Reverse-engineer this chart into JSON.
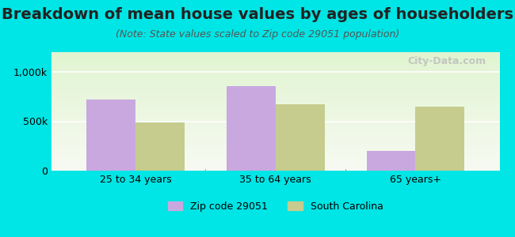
{
  "title": "Breakdown of mean house values by ages of householders",
  "subtitle": "(Note: State values scaled to Zip code 29051 population)",
  "categories": [
    "25 to 34 years",
    "35 to 64 years",
    "65 years+"
  ],
  "zip_values": [
    720000,
    860000,
    200000
  ],
  "state_values": [
    490000,
    670000,
    650000
  ],
  "ylim": [
    0,
    1200000
  ],
  "yticks": [
    0,
    500000,
    1000000
  ],
  "ytick_labels": [
    "0",
    "500k",
    "1,000k"
  ],
  "zip_color": "#c9a8e0",
  "state_color": "#c5cc8e",
  "background_outer": "#00e5e5",
  "legend_zip_label": "Zip code 29051",
  "legend_state_label": "South Carolina",
  "bar_width": 0.35,
  "watermark": "City-Data.com",
  "title_fontsize": 14,
  "subtitle_fontsize": 9,
  "tick_fontsize": 9,
  "legend_fontsize": 9
}
